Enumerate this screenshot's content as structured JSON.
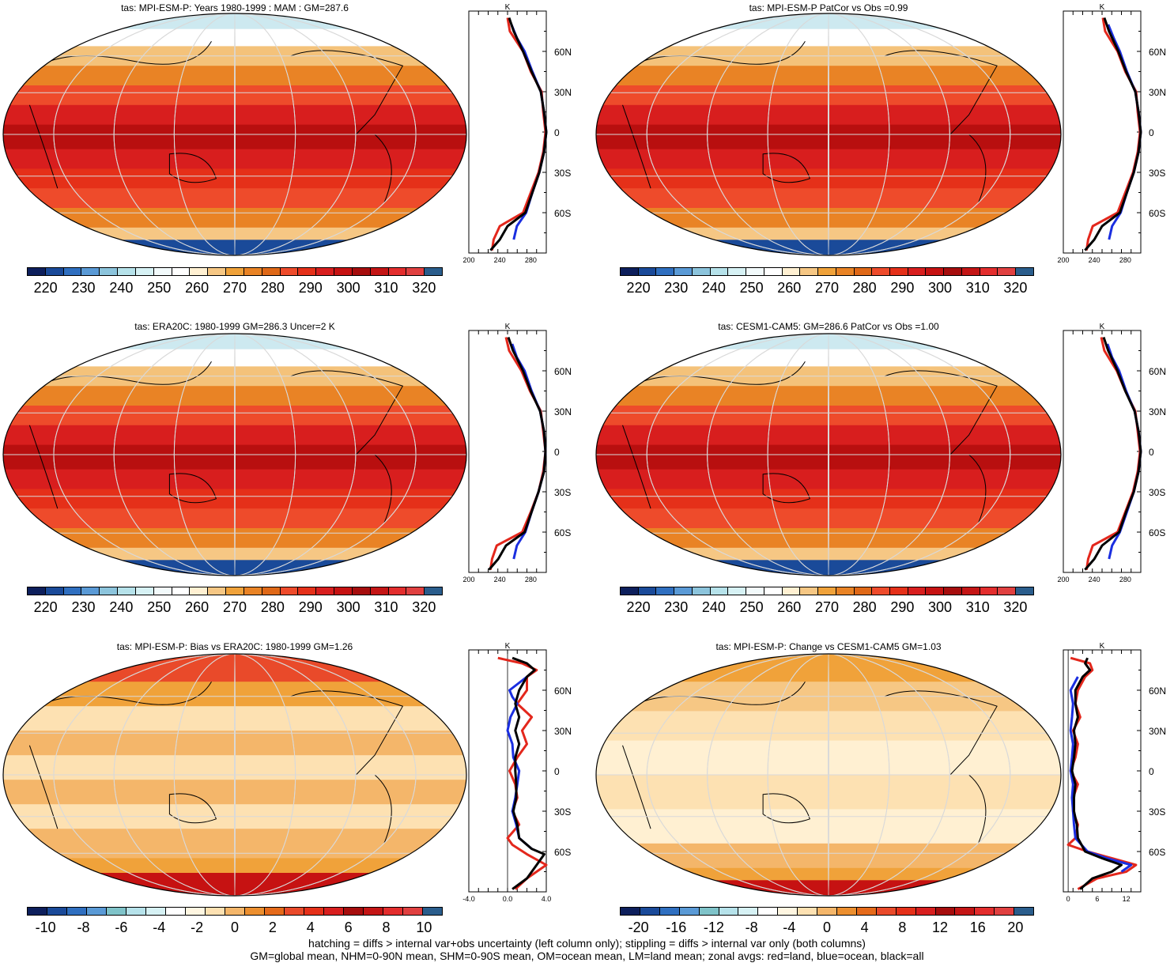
{
  "footer": {
    "line1": "hatching = diffs > internal var+obs uncertainty (left column only); stippling = diffs > internal var only (both columns)",
    "line2": "GM=global mean, NHM=0-90N mean, SHM=0-90S mean, OM=ocean mean, LM=land mean; zonal avgs: red=land, blue=ocean, black=all"
  },
  "colors": {
    "abs_scale": [
      "#0d1f5c",
      "#1a4a99",
      "#2f6fc0",
      "#5a9ad6",
      "#8cc4dc",
      "#b6e2ea",
      "#d6f1f4",
      "#f2fafb",
      "#ffffff",
      "#fff0d2",
      "#f6c784",
      "#f0a23a",
      "#e98325",
      "#df6817",
      "#ee4b2b",
      "#e53019",
      "#d81e1e",
      "#c61212",
      "#a60d0d",
      "#c41515",
      "#e32d2d",
      "#e04040",
      "#2a5d8c"
    ],
    "bias_scale": [
      "#0d1f5c",
      "#1a4a99",
      "#2f6fc0",
      "#5a9ad6",
      "#7fc3c9",
      "#b6e2ea",
      "#d6f1f4",
      "#ffffff",
      "#fff6e1",
      "#fde1b2",
      "#f4b66a",
      "#ec8f2f",
      "#e56a1a",
      "#e94a2a",
      "#e53019",
      "#d81e1e",
      "#a60d0d",
      "#c41515",
      "#e32d2d",
      "#e04040",
      "#2a5d8c"
    ],
    "land": "#e3271c",
    "ocean": "#1a2ee0",
    "all": "#000000"
  },
  "panels": [
    {
      "title": "tas: MPI-ESM-P: Years 1980-1999 : MAM : GM=287.6",
      "colorbar_labels": [
        "220",
        "230",
        "240",
        "250",
        "260",
        "270",
        "280",
        "290",
        "300",
        "310",
        "320"
      ],
      "profile": {
        "x_ticks": [
          "200",
          "240",
          "280"
        ],
        "units": "K",
        "lat_ticks": [
          "60N",
          "30N",
          "0",
          "30S",
          "60S"
        ]
      },
      "chart_data": {
        "type": "line",
        "title": "tas: MPI-ESM-P: Years 1980-1999 : MAM : GM=287.6",
        "xlabel": "K",
        "xlim": [
          200,
          300
        ],
        "ylim": [
          -90,
          90
        ],
        "series": [
          {
            "name": "land",
            "y": [
              85,
              75,
              60,
              45,
              30,
              15,
              0,
              -15,
              -30,
              -45,
              -60,
              -70,
              -80,
              -88
            ],
            "x": [
              250,
              253,
              270,
              280,
              294,
              296,
              299,
              296,
              290,
              280,
              270,
              240,
              232,
              230
            ]
          },
          {
            "name": "ocean",
            "y": [
              80,
              70,
              60,
              45,
              30,
              15,
              0,
              -15,
              -30,
              -45,
              -60,
              -70,
              -80
            ],
            "x": [
              255,
              262,
              272,
              282,
              293,
              297,
              300,
              297,
              291,
              282,
              274,
              262,
              258
            ]
          },
          {
            "name": "all",
            "y": [
              85,
              75,
              60,
              45,
              30,
              15,
              0,
              -15,
              -30,
              -45,
              -60,
              -70,
              -80,
              -88
            ],
            "x": [
              252,
              258,
              270,
              281,
              293,
              297,
              300,
              297,
              291,
              282,
              273,
              250,
              240,
              228
            ]
          }
        ]
      }
    },
    {
      "title": "tas: MPI-ESM-P PatCor vs Obs =0.99",
      "colorbar_labels": [
        "220",
        "230",
        "240",
        "250",
        "260",
        "270",
        "280",
        "290",
        "300",
        "310",
        "320"
      ],
      "profile": {
        "x_ticks": [
          "200",
          "240",
          "280"
        ],
        "units": "K",
        "lat_ticks": [
          "60N",
          "30N",
          "0",
          "30S",
          "60S"
        ]
      },
      "chart_data": {
        "type": "line",
        "title": "tas: MPI-ESM-P PatCor vs Obs =0.99",
        "xlabel": "K",
        "xlim": [
          200,
          300
        ],
        "ylim": [
          -90,
          90
        ],
        "series": [
          {
            "name": "land",
            "y": [
              85,
              75,
              60,
              45,
              30,
              15,
              0,
              -15,
              -30,
              -45,
              -60,
              -70,
              -80,
              -88
            ],
            "x": [
              251,
              254,
              270,
              280,
              294,
              296,
              299,
              296,
              290,
              280,
              270,
              238,
              232,
              230
            ]
          },
          {
            "name": "ocean",
            "y": [
              80,
              70,
              60,
              45,
              30,
              15,
              0,
              -15,
              -30,
              -45,
              -60,
              -70,
              -80
            ],
            "x": [
              258,
              265,
              273,
              282,
              293,
              297,
              300,
              297,
              291,
              282,
              274,
              263,
              259
            ]
          },
          {
            "name": "all",
            "y": [
              85,
              75,
              60,
              45,
              30,
              15,
              0,
              -15,
              -30,
              -45,
              -60,
              -70,
              -80,
              -88
            ],
            "x": [
              253,
              259,
              271,
              281,
              293,
              297,
              300,
              297,
              291,
              282,
              273,
              250,
              240,
              228
            ]
          }
        ]
      }
    },
    {
      "title": "tas: ERA20C: 1980-1999 GM=286.3 Uncer=2 K",
      "colorbar_labels": [
        "220",
        "230",
        "240",
        "250",
        "260",
        "270",
        "280",
        "290",
        "300",
        "310",
        "320"
      ],
      "profile": {
        "x_ticks": [
          "200",
          "240",
          "280"
        ],
        "units": "K",
        "lat_ticks": [
          "60N",
          "30N",
          "0",
          "30S",
          "60S"
        ]
      },
      "chart_data": {
        "type": "line",
        "title": "tas: ERA20C: 1980-1999 GM=286.3 Uncer=2 K",
        "xlabel": "K",
        "xlim": [
          200,
          300
        ],
        "ylim": [
          -90,
          90
        ],
        "series": [
          {
            "name": "land",
            "y": [
              85,
              75,
              60,
              45,
              30,
              15,
              0,
              -15,
              -30,
              -45,
              -60,
              -70,
              -80,
              -88
            ],
            "x": [
              248,
              252,
              268,
              279,
              293,
              296,
              299,
              296,
              290,
              280,
              269,
              236,
              230,
              228
            ]
          },
          {
            "name": "ocean",
            "y": [
              80,
              70,
              60,
              45,
              30,
              15,
              0,
              -15,
              -30,
              -45,
              -60,
              -70,
              -80
            ],
            "x": [
              256,
              262,
              272,
              281,
              292,
              297,
              299,
              297,
              290,
              281,
              273,
              262,
              258
            ]
          },
          {
            "name": "all",
            "y": [
              85,
              75,
              60,
              45,
              30,
              15,
              0,
              -15,
              -30,
              -45,
              -60,
              -70,
              -80,
              -88
            ],
            "x": [
              251,
              257,
              270,
              280,
              292,
              297,
              299,
              297,
              290,
              281,
              272,
              248,
              238,
              226
            ]
          }
        ]
      }
    },
    {
      "title": "tas: CESM1-CAM5: GM=286.6 PatCor vs Obs =1.00",
      "colorbar_labels": [
        "220",
        "230",
        "240",
        "250",
        "260",
        "270",
        "280",
        "290",
        "300",
        "310",
        "320"
      ],
      "profile": {
        "x_ticks": [
          "200",
          "240",
          "280"
        ],
        "units": "K",
        "lat_ticks": [
          "60N",
          "30N",
          "0",
          "30S",
          "60S"
        ]
      },
      "chart_data": {
        "type": "line",
        "title": "tas: CESM1-CAM5: GM=286.6 PatCor vs Obs =1.00",
        "xlabel": "K",
        "xlim": [
          200,
          300
        ],
        "ylim": [
          -90,
          90
        ],
        "series": [
          {
            "name": "land",
            "y": [
              85,
              75,
              60,
              45,
              30,
              15,
              0,
              -15,
              -30,
              -45,
              -60,
              -70,
              -80,
              -88
            ],
            "x": [
              249,
              253,
              269,
              280,
              293,
              296,
              299,
              296,
              290,
              280,
              270,
              238,
              232,
              230
            ]
          },
          {
            "name": "ocean",
            "y": [
              80,
              70,
              60,
              45,
              30,
              15,
              0,
              -15,
              -30,
              -45,
              -60,
              -70,
              -80
            ],
            "x": [
              257,
              263,
              272,
              281,
              292,
              297,
              300,
              297,
              291,
              282,
              273,
              263,
              259
            ]
          },
          {
            "name": "all",
            "y": [
              85,
              75,
              60,
              45,
              30,
              15,
              0,
              -15,
              -30,
              -45,
              -60,
              -70,
              -80,
              -88
            ],
            "x": [
              252,
              258,
              270,
              280,
              292,
              297,
              300,
              297,
              291,
              281,
              272,
              250,
              240,
              228
            ]
          }
        ]
      }
    },
    {
      "title": "tas: MPI-ESM-P: Bias vs ERA20C: 1980-1999 GM=1.26",
      "colorbar_labels": [
        "-10",
        "-8",
        "-6",
        "-4",
        "-2",
        "0",
        "2",
        "4",
        "6",
        "8",
        "10"
      ],
      "profile": {
        "x_ticks": [
          "-4.0",
          "0.0",
          "4.0"
        ],
        "units": "K",
        "lat_ticks": [
          "60N",
          "30N",
          "0",
          "30S",
          "60S"
        ]
      },
      "chart_data": {
        "type": "line",
        "title": "tas: MPI-ESM-P: Bias vs ERA20C: 1980-1999 GM=1.26",
        "xlabel": "K",
        "xlim": [
          -4,
          4
        ],
        "ylim": [
          -90,
          90
        ],
        "series": [
          {
            "name": "land",
            "y": [
              84,
              80,
              75,
              70,
              60,
              50,
              40,
              30,
              20,
              10,
              0,
              -10,
              -20,
              -30,
              -40,
              -50,
              -55,
              -62,
              -70,
              -80,
              -88
            ],
            "x": [
              -1.0,
              1.5,
              3.0,
              2.0,
              2.0,
              1.0,
              2.5,
              1.5,
              2.0,
              1.0,
              0.2,
              0.8,
              1.0,
              0.5,
              1.2,
              0.0,
              0.5,
              2.0,
              4.0,
              2.0,
              0.8
            ]
          },
          {
            "name": "ocean",
            "y": [
              70,
              60,
              55,
              50,
              40,
              30,
              20,
              10,
              0,
              -10,
              -20,
              -30,
              -40,
              -50,
              -58
            ],
            "x": [
              2.0,
              0.2,
              0.5,
              1.0,
              0.3,
              0.0,
              0.5,
              0.6,
              1.2,
              1.0,
              0.8,
              0.5,
              0.9,
              1.2,
              2.5
            ]
          },
          {
            "name": "all",
            "y": [
              84,
              80,
              75,
              70,
              60,
              50,
              40,
              30,
              20,
              10,
              0,
              -10,
              -20,
              -30,
              -40,
              -50,
              -58,
              -62,
              -70,
              -80,
              -88
            ],
            "x": [
              0.5,
              2.0,
              2.8,
              2.0,
              1.2,
              0.8,
              1.2,
              0.8,
              1.2,
              0.8,
              0.8,
              0.9,
              0.9,
              0.6,
              1.0,
              1.2,
              2.5,
              3.8,
              3.0,
              2.0,
              0.5
            ]
          }
        ]
      }
    },
    {
      "title": "tas: MPI-ESM-P: Change vs CESM1-CAM5 GM=1.03",
      "colorbar_labels": [
        "-20",
        "-16",
        "-12",
        "-8",
        "-4",
        "0",
        "4",
        "8",
        "12",
        "16",
        "20"
      ],
      "profile": {
        "x_ticks": [
          "0",
          "6",
          "12"
        ],
        "units": "K",
        "lat_ticks": [
          "60N",
          "30N",
          "0",
          "30S",
          "60S"
        ]
      },
      "chart_data": {
        "type": "line",
        "title": "tas: MPI-ESM-P: Change vs CESM1-CAM5 GM=1.03",
        "xlabel": "K",
        "xlim": [
          -1,
          15
        ],
        "ylim": [
          -90,
          90
        ],
        "series": [
          {
            "name": "land",
            "y": [
              84,
              80,
              75,
              70,
              60,
              50,
              40,
              30,
              20,
              10,
              0,
              -10,
              -20,
              -30,
              -40,
              -50,
              -55,
              -60,
              -65,
              -70,
              -75,
              -80,
              -88
            ],
            "x": [
              0.5,
              4.5,
              5.0,
              3.5,
              2.0,
              1.5,
              2.5,
              1.0,
              2.0,
              1.5,
              0.5,
              2.0,
              1.0,
              1.0,
              2.0,
              1.5,
              0.0,
              4.0,
              9.0,
              14.0,
              12.0,
              6.0,
              2.0
            ]
          },
          {
            "name": "ocean",
            "y": [
              70,
              60,
              50,
              40,
              30,
              20,
              10,
              0,
              -10,
              -20,
              -30,
              -40,
              -50,
              -60,
              -65,
              -70,
              -75
            ],
            "x": [
              2.0,
              0.5,
              1.0,
              0.8,
              0.5,
              1.0,
              0.8,
              0.5,
              1.0,
              0.8,
              1.0,
              1.2,
              1.5,
              4.0,
              8.0,
              13.0,
              11.0
            ]
          },
          {
            "name": "all",
            "y": [
              84,
              80,
              75,
              70,
              60,
              50,
              40,
              30,
              20,
              10,
              0,
              -10,
              -20,
              -30,
              -40,
              -50,
              -60,
              -65,
              -70,
              -75,
              -80,
              -88
            ],
            "x": [
              4.0,
              3.5,
              4.5,
              3.0,
              1.5,
              1.5,
              2.0,
              1.2,
              1.5,
              1.2,
              0.8,
              1.5,
              1.2,
              1.2,
              1.8,
              2.0,
              3.5,
              7.0,
              11.0,
              9.0,
              5.0,
              2.5
            ]
          }
        ]
      }
    }
  ]
}
